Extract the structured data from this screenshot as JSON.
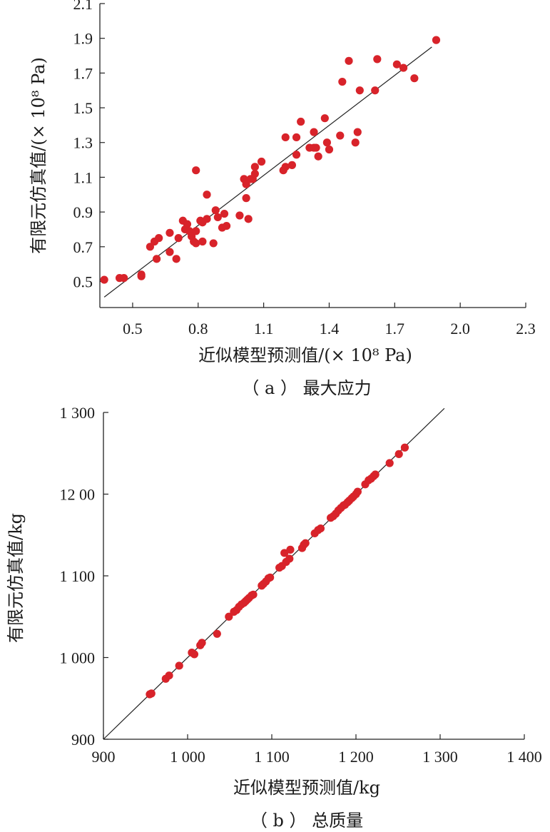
{
  "chart_data": [
    {
      "type": "scatter",
      "xlabel": "近似模型预测值/(× 10⁸ Pa)",
      "ylabel": "有限元仿真值/(× 10⁸ Pa)",
      "caption": "（ a ） 最大应力",
      "xlim": [
        0.35,
        2.3
      ],
      "ylim": [
        0.35,
        2.1
      ],
      "xticks": [
        0.5,
        0.8,
        1.1,
        1.4,
        1.7,
        2.0,
        2.3
      ],
      "xtick_labels": [
        "0.5",
        "0.8",
        "1.1",
        "1.4",
        "1.7",
        "2.0",
        "2.3"
      ],
      "yticks": [
        0.5,
        0.7,
        0.9,
        1.1,
        1.3,
        1.5,
        1.7,
        1.9,
        2.1
      ],
      "ytick_labels": [
        "0.5",
        "0.7",
        "0.9",
        "1.1",
        "1.3",
        "1.5",
        "1.7",
        "1.9",
        "2.1"
      ],
      "fit_line": [
        [
          0.37,
          0.41
        ],
        [
          1.87,
          1.85
        ]
      ],
      "point_color": "#d8232a",
      "grid": false,
      "points": [
        [
          0.37,
          0.51
        ],
        [
          0.44,
          0.52
        ],
        [
          0.46,
          0.52
        ],
        [
          0.54,
          0.53
        ],
        [
          0.54,
          0.54
        ],
        [
          0.58,
          0.7
        ],
        [
          0.6,
          0.73
        ],
        [
          0.61,
          0.63
        ],
        [
          0.62,
          0.75
        ],
        [
          0.67,
          0.67
        ],
        [
          0.67,
          0.78
        ],
        [
          0.7,
          0.63
        ],
        [
          0.71,
          0.75
        ],
        [
          0.73,
          0.85
        ],
        [
          0.74,
          0.8
        ],
        [
          0.75,
          0.83
        ],
        [
          0.76,
          0.79
        ],
        [
          0.77,
          0.76
        ],
        [
          0.78,
          0.73
        ],
        [
          0.79,
          0.72
        ],
        [
          0.79,
          0.79
        ],
        [
          0.79,
          1.14
        ],
        [
          0.81,
          0.85
        ],
        [
          0.82,
          0.84
        ],
        [
          0.82,
          0.73
        ],
        [
          0.84,
          0.86
        ],
        [
          0.84,
          1.0
        ],
        [
          0.87,
          0.72
        ],
        [
          0.88,
          0.91
        ],
        [
          0.89,
          0.87
        ],
        [
          0.91,
          0.81
        ],
        [
          0.92,
          0.89
        ],
        [
          0.93,
          0.82
        ],
        [
          0.99,
          0.88
        ],
        [
          1.01,
          1.09
        ],
        [
          1.02,
          0.98
        ],
        [
          1.02,
          1.06
        ],
        [
          1.03,
          0.86
        ],
        [
          1.04,
          1.09
        ],
        [
          1.05,
          1.09
        ],
        [
          1.06,
          1.12
        ],
        [
          1.06,
          1.16
        ],
        [
          1.09,
          1.19
        ],
        [
          1.19,
          1.14
        ],
        [
          1.2,
          1.16
        ],
        [
          1.2,
          1.33
        ],
        [
          1.23,
          1.17
        ],
        [
          1.25,
          1.23
        ],
        [
          1.25,
          1.33
        ],
        [
          1.27,
          1.42
        ],
        [
          1.31,
          1.27
        ],
        [
          1.33,
          1.27
        ],
        [
          1.33,
          1.36
        ],
        [
          1.34,
          1.27
        ],
        [
          1.35,
          1.22
        ],
        [
          1.38,
          1.44
        ],
        [
          1.39,
          1.3
        ],
        [
          1.4,
          1.26
        ],
        [
          1.45,
          1.34
        ],
        [
          1.46,
          1.65
        ],
        [
          1.49,
          1.77
        ],
        [
          1.52,
          1.3
        ],
        [
          1.53,
          1.36
        ],
        [
          1.54,
          1.6
        ],
        [
          1.61,
          1.6
        ],
        [
          1.62,
          1.78
        ],
        [
          1.71,
          1.75
        ],
        [
          1.74,
          1.73
        ],
        [
          1.79,
          1.67
        ],
        [
          1.89,
          1.89
        ]
      ]
    },
    {
      "type": "scatter",
      "xlabel": "近似模型预测值/kg",
      "ylabel": "有限元仿真值/kg",
      "caption": "（ b ） 总质量",
      "xlim": [
        900,
        1400
      ],
      "ylim": [
        900,
        1300
      ],
      "xticks": [
        900,
        1000,
        1100,
        1200,
        1300,
        1400
      ],
      "xtick_labels": [
        "900",
        "1 000",
        "1 100",
        "1 200",
        "1 300",
        "1 400"
      ],
      "yticks": [
        900,
        1000,
        1100,
        1200,
        1300
      ],
      "ytick_labels": [
        "900",
        "1 000",
        "1 100",
        "12 00",
        "1 300"
      ],
      "fit_line": [
        [
          900,
          900
        ],
        [
          1305,
          1305
        ]
      ],
      "point_color": "#d8232a",
      "grid": false,
      "points": [
        [
          955,
          955
        ],
        [
          957,
          956
        ],
        [
          974,
          974
        ],
        [
          978,
          978
        ],
        [
          990,
          990
        ],
        [
          1005,
          1006
        ],
        [
          1008,
          1004
        ],
        [
          1015,
          1015
        ],
        [
          1017,
          1018
        ],
        [
          1035,
          1029
        ],
        [
          1049,
          1050
        ],
        [
          1055,
          1056
        ],
        [
          1058,
          1058
        ],
        [
          1061,
          1062
        ],
        [
          1064,
          1065
        ],
        [
          1067,
          1067
        ],
        [
          1069,
          1069
        ],
        [
          1071,
          1071
        ],
        [
          1073,
          1073
        ],
        [
          1076,
          1076
        ],
        [
          1078,
          1077
        ],
        [
          1088,
          1088
        ],
        [
          1090,
          1090
        ],
        [
          1093,
          1093
        ],
        [
          1096,
          1097
        ],
        [
          1098,
          1098
        ],
        [
          1109,
          1110
        ],
        [
          1112,
          1112
        ],
        [
          1115,
          1128
        ],
        [
          1117,
          1117
        ],
        [
          1121,
          1121
        ],
        [
          1122,
          1132
        ],
        [
          1136,
          1134
        ],
        [
          1138,
          1138
        ],
        [
          1140,
          1140
        ],
        [
          1151,
          1152
        ],
        [
          1155,
          1156
        ],
        [
          1158,
          1158
        ],
        [
          1170,
          1171
        ],
        [
          1173,
          1173
        ],
        [
          1176,
          1176
        ],
        [
          1179,
          1180
        ],
        [
          1182,
          1183
        ],
        [
          1185,
          1186
        ],
        [
          1187,
          1187
        ],
        [
          1190,
          1190
        ],
        [
          1192,
          1192
        ],
        [
          1195,
          1195
        ],
        [
          1197,
          1197
        ],
        [
          1200,
          1200
        ],
        [
          1202,
          1203
        ],
        [
          1211,
          1212
        ],
        [
          1215,
          1217
        ],
        [
          1218,
          1219
        ],
        [
          1221,
          1222
        ],
        [
          1223,
          1224
        ],
        [
          1240,
          1238
        ],
        [
          1251,
          1249
        ],
        [
          1258,
          1257
        ]
      ]
    }
  ]
}
